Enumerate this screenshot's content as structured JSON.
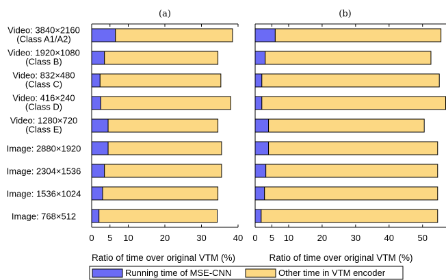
{
  "chart_data": {
    "type": "bar",
    "stacked": true,
    "orientation": "horizontal",
    "categories": [
      [
        "Video: 3840×2160",
        "(Class A1/A2)"
      ],
      [
        "Video: 1920×1080",
        "(Class B)"
      ],
      [
        "Video:  832×480",
        "(Class C)"
      ],
      [
        "Video:  416×240",
        "(Class D)"
      ],
      [
        "Video: 1280×720",
        "(Class E)"
      ],
      [
        "Image: 2880×1920"
      ],
      [
        "Image: 2304×1536"
      ],
      [
        "Image: 1536×1024"
      ],
      [
        "Image:   768×512"
      ]
    ],
    "legend": {
      "placement": "bottom",
      "entries": [
        "Running time of MSE-CNN",
        "Other time in VTM encoder"
      ]
    },
    "colors": {
      "mse_cnn": "#6b6bf5",
      "other": "#fcd883",
      "edge": "#000000"
    },
    "panels": [
      {
        "title": "(a)",
        "xlabel": "Ratio of time over original VTM (%)",
        "xlim": [
          0,
          40
        ],
        "xticks": [
          0,
          5,
          10,
          20,
          30,
          40
        ],
        "series": [
          {
            "name": "Running time of MSE-CNN",
            "values": [
              6.5,
              3.5,
              2.3,
              2.5,
              4.5,
              4.5,
              3.5,
              3.0,
              2.0
            ]
          },
          {
            "name": "Other time in VTM encoder",
            "values": [
              32.0,
              31.0,
              33.0,
              35.5,
              30.0,
              31.0,
              32.0,
              31.5,
              32.3
            ]
          }
        ]
      },
      {
        "title": "(b)",
        "xlabel": "Ratio of time over original VTM (%)",
        "xlim": [
          0,
          57
        ],
        "xticks": [
          0,
          5,
          10,
          20,
          30,
          40,
          50
        ],
        "series": [
          {
            "name": "Running time of MSE-CNN",
            "values": [
              6.0,
              3.0,
              2.0,
              2.0,
              4.0,
              4.0,
              3.2,
              2.8,
              1.8
            ]
          },
          {
            "name": "Other time in VTM encoder",
            "values": [
              49.5,
              49.5,
              53.0,
              55.0,
              46.5,
              50.5,
              51.3,
              51.7,
              52.7
            ]
          }
        ]
      }
    ]
  }
}
